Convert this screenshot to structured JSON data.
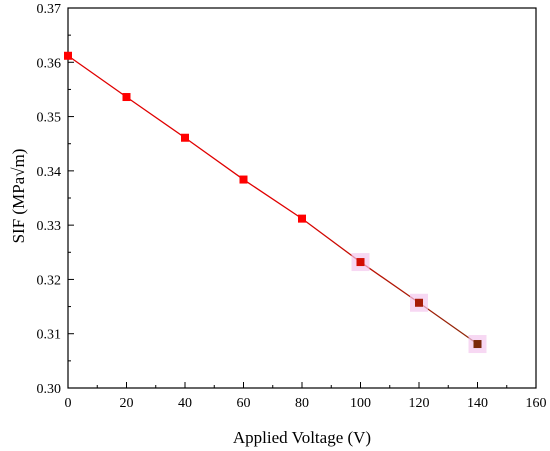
{
  "chart_data": {
    "type": "line",
    "title": "",
    "xlabel": "Applied Voltage (V)",
    "ylabel": "SIF (MPa√m)",
    "xlim": [
      0,
      160
    ],
    "ylim": [
      0.3,
      0.37
    ],
    "xticks": [
      "0",
      "20",
      "40",
      "60",
      "80",
      "100",
      "120",
      "140",
      "160"
    ],
    "yticks": [
      "0.30",
      "0.31",
      "0.32",
      "0.33",
      "0.34",
      "0.35",
      "0.36",
      "0.37"
    ],
    "grid": false,
    "series": [
      {
        "x": [
          0,
          20,
          40,
          60,
          80,
          100,
          120,
          140
        ],
        "y": [
          0.3612,
          0.3536,
          0.3461,
          0.3384,
          0.3312,
          0.3232,
          0.3157,
          0.3081
        ],
        "marker": "square",
        "line_color_start": "#e00000",
        "line_color_end": "#8b2a0a",
        "marker_color_start": "#ff0000",
        "marker_color_end": "#7a2a0a"
      }
    ]
  }
}
